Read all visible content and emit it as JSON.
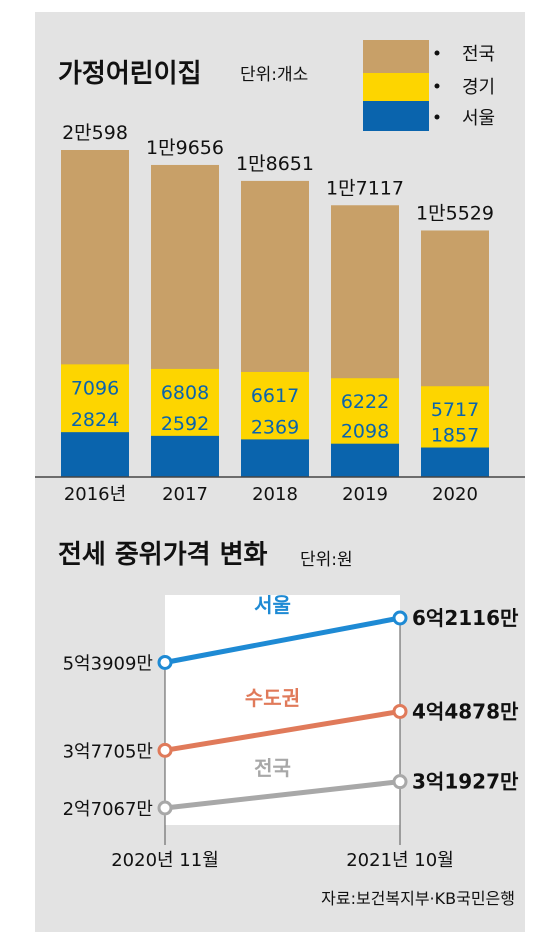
{
  "chart_data": [
    {
      "type": "bar",
      "title": "가정어린이집",
      "unit": "단위:개소",
      "categories": [
        "2016년",
        "2017",
        "2018",
        "2019",
        "2020"
      ],
      "series": [
        {
          "name": "전국",
          "values": [
            20598,
            19656,
            18651,
            17117,
            15529
          ],
          "labels": [
            "2만598",
            "1만9656",
            "1만8651",
            "1만7117",
            "1만5529"
          ],
          "color": "#c8a068"
        },
        {
          "name": "경기",
          "values": [
            7096,
            6808,
            6617,
            6222,
            5717
          ],
          "labels": [
            "7096",
            "6808",
            "6617",
            "6222",
            "5717"
          ],
          "color": "#fdd500"
        },
        {
          "name": "서울",
          "values": [
            2824,
            2592,
            2369,
            2098,
            1857
          ],
          "labels": [
            "2824",
            "2592",
            "2369",
            "2098",
            "1857"
          ],
          "color": "#0a64ad"
        }
      ],
      "ylim": [
        0,
        20598
      ],
      "legend": "top-right"
    },
    {
      "type": "line",
      "title": "전세 중위가격 변화",
      "unit": "단위:원",
      "x": [
        "2020년 11월",
        "2021년 10월"
      ],
      "series": [
        {
          "name": "서울",
          "values": [
            539090000,
            621160000
          ],
          "labels": [
            "5억3909만",
            "6억2116만"
          ],
          "color": "#1e8ad4"
        },
        {
          "name": "수도권",
          "values": [
            377050000,
            448780000
          ],
          "labels": [
            "3억7705만",
            "4억4878만"
          ],
          "color": "#e07a5a"
        },
        {
          "name": "전국",
          "values": [
            270670000,
            319270000
          ],
          "labels": [
            "2억7067만",
            "3억1927만"
          ],
          "color": "#a8a8a8"
        }
      ]
    }
  ],
  "source": "자료:보건복지부·KB국민은행"
}
